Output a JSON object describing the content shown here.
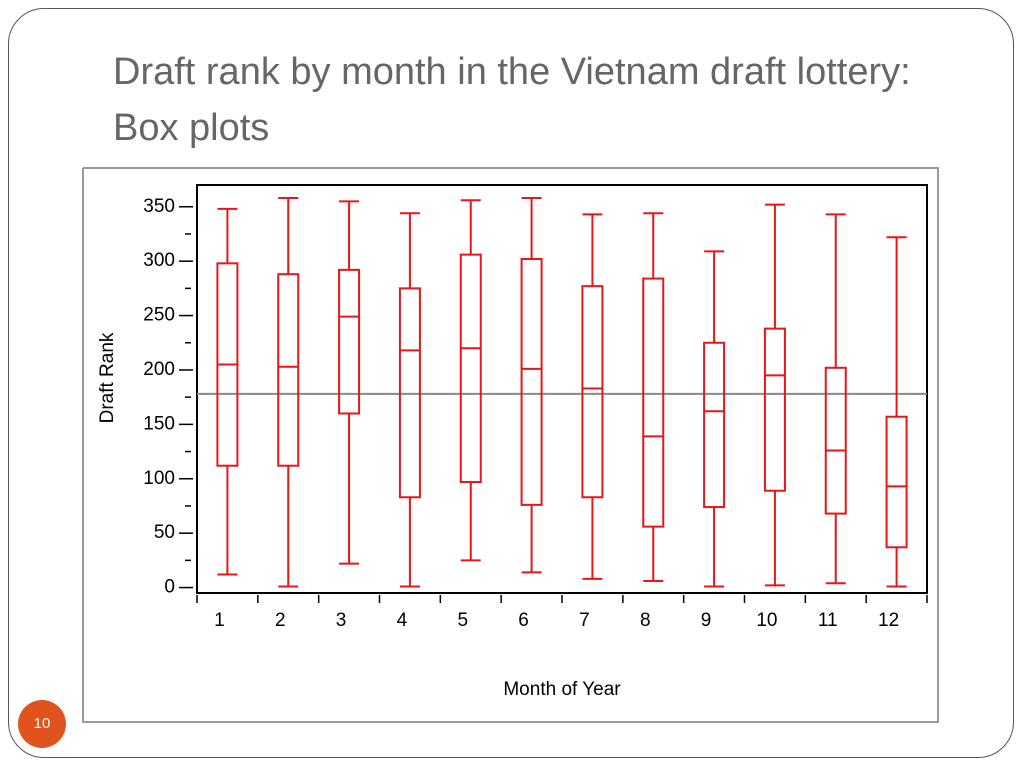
{
  "title": "Draft rank by month in the Vietnam draft lottery: Box plots",
  "page_number": "10",
  "chart_data": {
    "type": "box",
    "xlabel": "Month of Year",
    "ylabel": "Draft Rank",
    "categories": [
      "1",
      "2",
      "3",
      "4",
      "5",
      "6",
      "7",
      "8",
      "9",
      "10",
      "11",
      "12"
    ],
    "color": "#e8151b",
    "whisker_high": [
      348,
      358,
      355,
      344,
      356,
      358,
      343,
      344,
      309,
      352,
      343,
      322
    ],
    "q3": [
      298,
      288,
      292,
      275,
      306,
      302,
      277,
      284,
      225,
      238,
      202,
      157
    ],
    "median": [
      205,
      203,
      249,
      218,
      220,
      201,
      183,
      139,
      162,
      195,
      126,
      93
    ],
    "q1": [
      112,
      112,
      160,
      83,
      97,
      76,
      83,
      56,
      74,
      89,
      68,
      37
    ],
    "whisker_low": [
      12,
      1,
      22,
      1,
      25,
      14,
      8,
      6,
      1,
      2,
      4,
      1
    ],
    "reference_line": 178,
    "ylim": [
      -5,
      370
    ],
    "yticks": [
      0,
      50,
      100,
      150,
      200,
      250,
      300,
      350
    ],
    "yminorticks": [
      25,
      75,
      125,
      175,
      225,
      275,
      325
    ]
  }
}
